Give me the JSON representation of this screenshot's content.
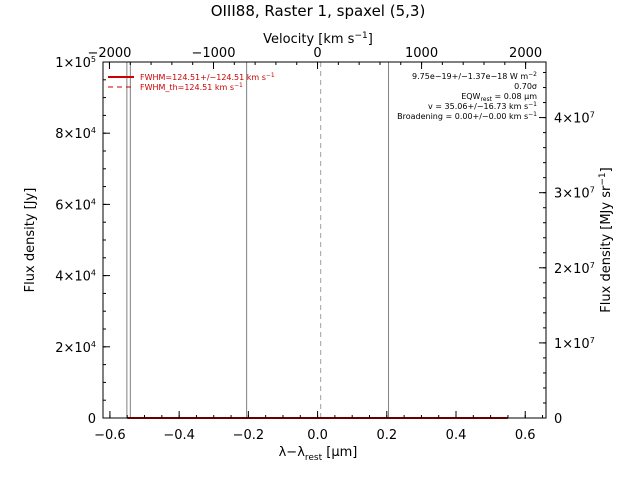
{
  "chart_data": {
    "type": "line",
    "title": "OIII88, Raster 1, spaxel (5,3)",
    "xlabel": "λ−λ",
    "xlabel_sub": "rest",
    "xlabel_unit": " [μm]",
    "ylabel": "Flux density [Jy]",
    "ylabel_right": "Flux density [MJy sr",
    "ylabel_right_sup": "−1",
    "ylabel_right_end": "]",
    "top_xlabel": "Velocity [km s",
    "top_xlabel_sup": "−1",
    "top_xlabel_end": "]",
    "xlim": [
      -0.62,
      0.66
    ],
    "ylim": [
      0,
      100000
    ],
    "yright_lim": [
      0,
      47400000
    ],
    "top_xlim": [
      -2062,
      2196
    ],
    "bottom_ticks": [
      -0.6,
      -0.4,
      -0.2,
      0.0,
      0.2,
      0.4,
      0.6
    ],
    "bottom_tick_labels": [
      "−0.6",
      "−0.4",
      "−0.2",
      "0.0",
      "0.2",
      "0.4",
      "0.6"
    ],
    "top_ticks": [
      -2000,
      -1000,
      0,
      1000,
      2000
    ],
    "top_tick_labels": [
      "−2000",
      "−1000",
      "0",
      "1000",
      "2000"
    ],
    "left_ticks": [
      0,
      20000,
      40000,
      60000,
      80000,
      100000
    ],
    "left_tick_labels": [
      {
        "base": "0",
        "exp": ""
      },
      {
        "base": "2×10",
        "exp": "4"
      },
      {
        "base": "4×10",
        "exp": "4"
      },
      {
        "base": "6×10",
        "exp": "4"
      },
      {
        "base": "8×10",
        "exp": "4"
      },
      {
        "base": "1×10",
        "exp": "5"
      }
    ],
    "right_ticks": [
      0,
      10000000,
      20000000,
      30000000,
      40000000
    ],
    "right_tick_labels": [
      {
        "base": "0",
        "exp": ""
      },
      {
        "base": "1×10",
        "exp": "7"
      },
      {
        "base": "2×10",
        "exp": "7"
      },
      {
        "base": "3×10",
        "exp": "7"
      },
      {
        "base": "4×10",
        "exp": "7"
      }
    ],
    "vertical_lines": [
      {
        "x": -0.551,
        "color": "#808080",
        "style": "solid"
      },
      {
        "x": -0.541,
        "color": "#808080",
        "style": "solid"
      },
      {
        "x": -0.205,
        "color": "#808080",
        "style": "solid"
      },
      {
        "x": 0.009,
        "color": "#a0a0a0",
        "style": "dashed"
      },
      {
        "x": 0.205,
        "color": "#808080",
        "style": "solid"
      }
    ],
    "series": [
      {
        "name": "FWHM=124.51+/−124.51 km s",
        "name_sup": "−1",
        "color": "#cc0000",
        "style": "solid",
        "x": [
          -0.55,
          0.55
        ],
        "y": [
          0,
          0
        ]
      },
      {
        "name": "FWHM_th=124.51 km s",
        "name_sup": "−1",
        "color": "#cc0000",
        "style": "dashed",
        "x": [],
        "y": []
      }
    ],
    "annotations": [
      {
        "text": "9.75e−19+/−1.37e−18 W m",
        "sup": "−2",
        "sub": ""
      },
      {
        "text": "0.70σ",
        "sup": "",
        "sub": ""
      },
      {
        "text": "EQW",
        "sub": "rest",
        "after": " = 0.08 μm",
        "sup": ""
      },
      {
        "text": "v = 35.06+/−16.73 km s",
        "sup": "−1",
        "sub": ""
      },
      {
        "text": "Broadening = 0.00+/−0.00 km s",
        "sup": "−1",
        "sub": ""
      }
    ],
    "grid": false,
    "legend_position": "top-left"
  },
  "colors": {
    "axis": "#000000",
    "vline": "#808080",
    "fit": "#cc0000"
  }
}
